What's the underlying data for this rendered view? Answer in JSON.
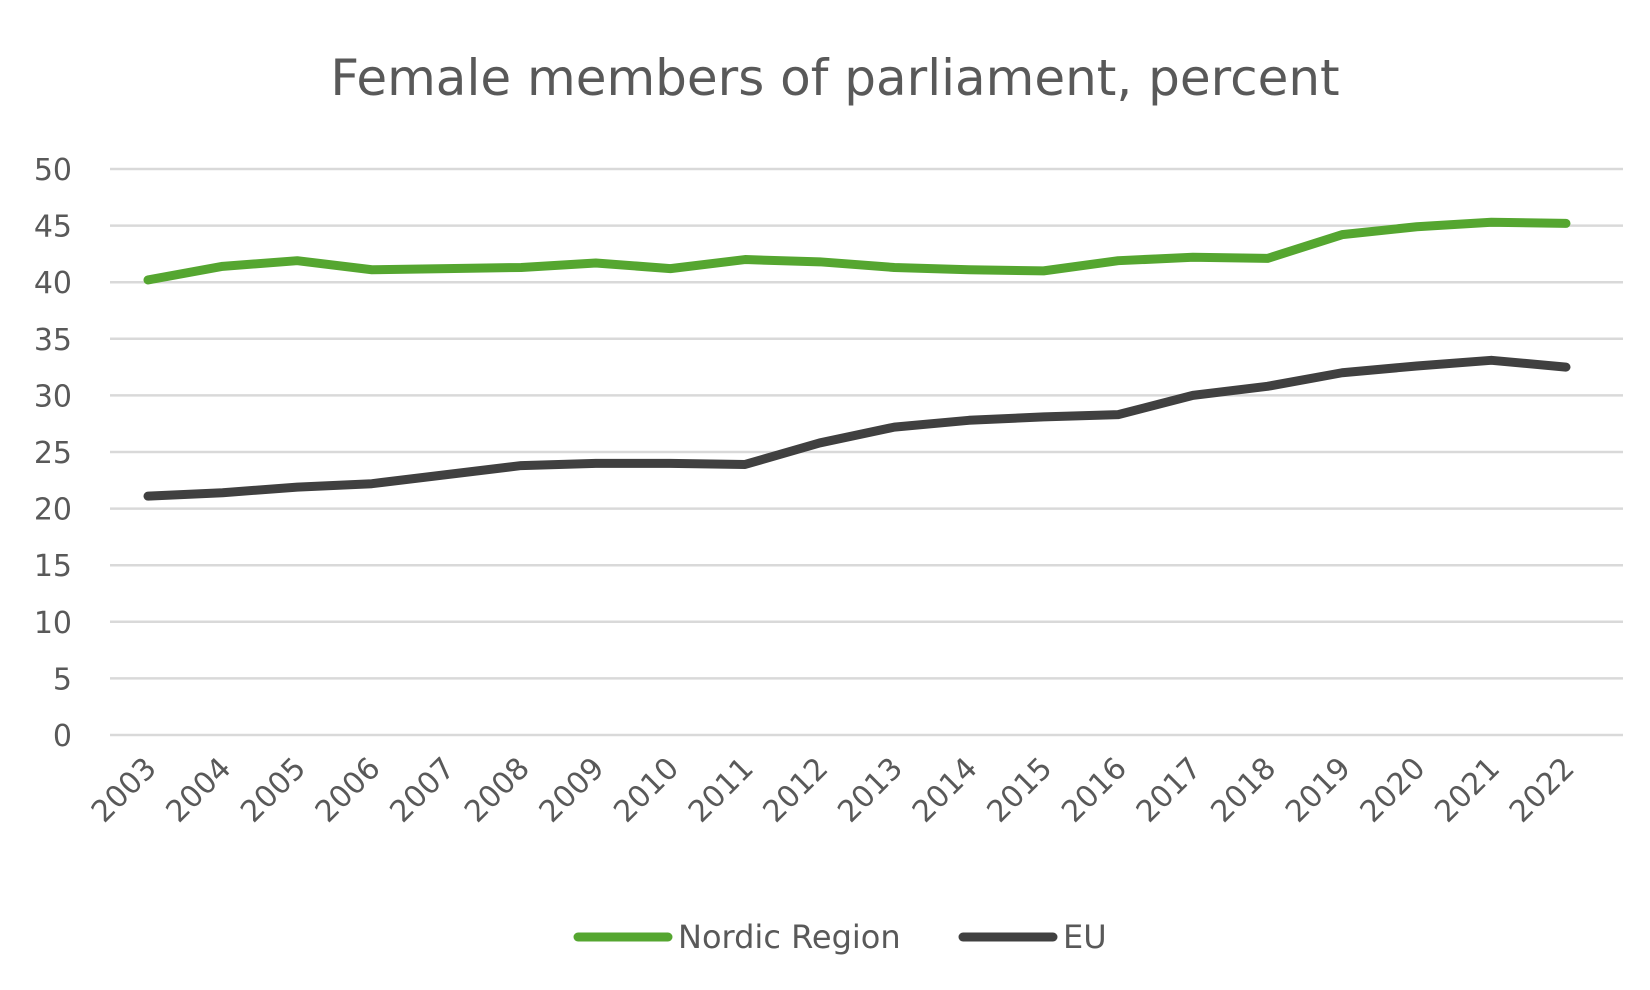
{
  "chart_data": {
    "type": "line",
    "title": "Female members of parliament, percent",
    "xlabel": "",
    "ylabel": "",
    "ylim": [
      0,
      50
    ],
    "yticks": [
      "0",
      "5",
      "10",
      "15",
      "20",
      "25",
      "30",
      "35",
      "40",
      "45",
      "50"
    ],
    "ytick_values": [
      0,
      5,
      10,
      15,
      20,
      25,
      30,
      35,
      40,
      45,
      50
    ],
    "grid": true,
    "legend_position": "bottom",
    "x": [
      "2003",
      "2004",
      "2005",
      "2006",
      "2007",
      "2008",
      "2009",
      "2010",
      "2011",
      "2012",
      "2013",
      "2014",
      "2015",
      "2016",
      "2017",
      "2018",
      "2019",
      "2020",
      "2021",
      "2022"
    ],
    "series": [
      {
        "name": "Nordic Region",
        "color": "#55a630",
        "values": [
          40.2,
          41.4,
          41.9,
          41.1,
          41.2,
          41.3,
          41.7,
          41.2,
          42.0,
          41.8,
          41.3,
          41.1,
          41.0,
          41.9,
          42.2,
          42.1,
          44.2,
          44.9,
          45.3,
          45.2
        ]
      },
      {
        "name": "EU",
        "color": "#404040",
        "values": [
          21.1,
          21.4,
          21.9,
          22.2,
          23.0,
          23.8,
          24.0,
          24.0,
          23.9,
          25.8,
          27.2,
          27.8,
          28.1,
          28.3,
          30.0,
          30.8,
          32.0,
          32.6,
          33.1,
          32.5
        ]
      }
    ]
  }
}
